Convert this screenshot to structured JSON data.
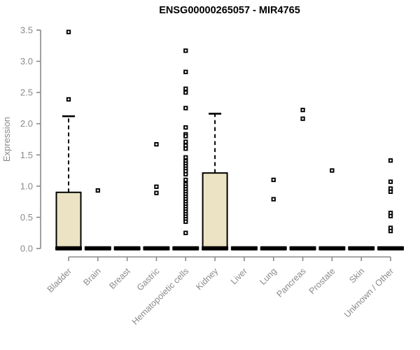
{
  "page": {
    "background": "#ffffff"
  },
  "chart_data": {
    "type": "boxplot",
    "title": "ENSG00000265057 - MIR4765",
    "ylabel": "Expression",
    "xlabel": "",
    "ylim": [
      0,
      3.5
    ],
    "ytick_labels": [
      "0.0",
      "0.5",
      "1.0",
      "1.5",
      "2.0",
      "2.5",
      "3.0",
      "3.5"
    ],
    "grid": false,
    "legend": false,
    "colors": {
      "box_fill": "#ebe3c3",
      "box_border": "#000000",
      "median": "#000000",
      "whisker": "#000000",
      "outlier_stroke": "#000000",
      "outlier_fill": "#ffffff",
      "axis": "#8a8a8a",
      "tick_label": "#8a8a8a",
      "title": "#000000"
    },
    "categories": [
      "Bladder",
      "Brain",
      "Breast",
      "Gastric",
      "Hematopoietic cells",
      "Kidney",
      "Liver",
      "Lung",
      "Pancreas",
      "Prostate",
      "Skin",
      "Unknown / Other"
    ],
    "boxes": [
      {
        "category": "Bladder",
        "whisker_low": 0,
        "q1": 0,
        "median": 0.02,
        "q3": 0.9,
        "whisker_high": 2.12,
        "outliers": [
          3.47,
          2.39
        ]
      },
      {
        "category": "Brain",
        "whisker_low": 0,
        "q1": 0,
        "median": 0.02,
        "q3": 0,
        "whisker_high": 0,
        "outliers": [
          0.93
        ]
      },
      {
        "category": "Breast",
        "whisker_low": 0,
        "q1": 0,
        "median": 0.02,
        "q3": 0,
        "whisker_high": 0,
        "outliers": []
      },
      {
        "category": "Gastric",
        "whisker_low": 0,
        "q1": 0,
        "median": 0.02,
        "q3": 0,
        "whisker_high": 0,
        "outliers": [
          1.67,
          0.99,
          0.89
        ]
      },
      {
        "category": "Hematopoietic cells",
        "whisker_low": 0,
        "q1": 0,
        "median": 0.02,
        "q3": 0,
        "whisker_high": 0,
        "outliers": [
          3.17,
          2.83,
          2.56,
          2.5,
          2.25,
          1.94,
          1.83,
          1.8,
          1.71,
          1.65,
          1.6,
          1.46,
          1.4,
          1.36,
          1.32,
          1.28,
          1.24,
          1.19,
          1.1,
          1.03,
          0.99,
          0.95,
          0.91,
          0.87,
          0.83,
          0.79,
          0.75,
          0.71,
          0.67,
          0.63,
          0.59,
          0.55,
          0.51,
          0.47,
          0.43,
          0.25
        ]
      },
      {
        "category": "Kidney",
        "whisker_low": 0,
        "q1": 0,
        "median": 0.02,
        "q3": 1.21,
        "whisker_high": 2.16,
        "outliers": []
      },
      {
        "category": "Liver",
        "whisker_low": 0,
        "q1": 0,
        "median": 0.02,
        "q3": 0,
        "whisker_high": 0,
        "outliers": []
      },
      {
        "category": "Lung",
        "whisker_low": 0,
        "q1": 0,
        "median": 0.02,
        "q3": 0,
        "whisker_high": 0,
        "outliers": [
          1.1,
          0.79
        ]
      },
      {
        "category": "Pancreas",
        "whisker_low": 0,
        "q1": 0,
        "median": 0.02,
        "q3": 0,
        "whisker_high": 0,
        "outliers": [
          2.22,
          2.08
        ]
      },
      {
        "category": "Prostate",
        "whisker_low": 0,
        "q1": 0,
        "median": 0.02,
        "q3": 0,
        "whisker_high": 0,
        "outliers": [
          1.25
        ]
      },
      {
        "category": "Skin",
        "whisker_low": 0,
        "q1": 0,
        "median": 0.02,
        "q3": 0,
        "whisker_high": 0,
        "outliers": []
      },
      {
        "category": "Unknown / Other",
        "whisker_low": 0,
        "q1": 0,
        "median": 0.02,
        "q3": 0,
        "whisker_high": 0,
        "outliers": [
          1.41,
          1.07,
          0.96,
          0.91,
          0.57,
          0.52,
          0.33,
          0.28
        ]
      }
    ]
  }
}
